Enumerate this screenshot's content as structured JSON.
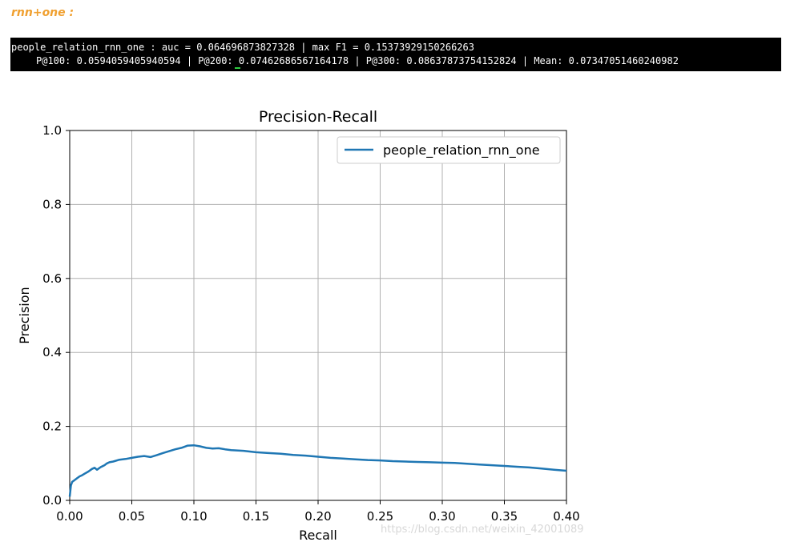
{
  "heading": "rnn+one :",
  "terminal": {
    "line1": "people_relation_rnn_one : auc = 0.064696873827328 | max F1 = 0.15373929150266263",
    "line2": "P@100: 0.0594059405940594 | P@200: 0.07462686567164178 | P@300: 0.08637873754152824 | Mean: 0.07347051460240982"
  },
  "watermark": "https://blog.csdn.net/weixin_42001089",
  "chart_data": {
    "type": "line",
    "title": "Precision-Recall",
    "xlabel": "Recall",
    "ylabel": "Precision",
    "xlim": [
      0.0,
      0.4
    ],
    "ylim": [
      0.0,
      1.0
    ],
    "xticks": [
      "0.00",
      "0.05",
      "0.10",
      "0.15",
      "0.20",
      "0.25",
      "0.30",
      "0.35",
      "0.40"
    ],
    "yticks": [
      "0.0",
      "0.2",
      "0.4",
      "0.6",
      "0.8",
      "1.0"
    ],
    "grid": true,
    "legend_position": "top-right",
    "color": "#1f77b4",
    "series": [
      {
        "name": "people_relation_rnn_one",
        "x": [
          0.0,
          0.001,
          0.002,
          0.004,
          0.006,
          0.008,
          0.01,
          0.012,
          0.015,
          0.018,
          0.02,
          0.022,
          0.025,
          0.028,
          0.03,
          0.032,
          0.035,
          0.04,
          0.045,
          0.05,
          0.055,
          0.06,
          0.065,
          0.07,
          0.075,
          0.08,
          0.085,
          0.09,
          0.095,
          0.1,
          0.105,
          0.11,
          0.115,
          0.12,
          0.125,
          0.13,
          0.14,
          0.15,
          0.16,
          0.17,
          0.18,
          0.19,
          0.2,
          0.21,
          0.22,
          0.23,
          0.24,
          0.25,
          0.26,
          0.27,
          0.28,
          0.29,
          0.3,
          0.31,
          0.32,
          0.33,
          0.34,
          0.35,
          0.36,
          0.37,
          0.38,
          0.39,
          0.4
        ],
        "y": [
          0.01,
          0.04,
          0.05,
          0.055,
          0.06,
          0.065,
          0.068,
          0.072,
          0.078,
          0.085,
          0.088,
          0.083,
          0.09,
          0.095,
          0.1,
          0.103,
          0.105,
          0.11,
          0.112,
          0.115,
          0.118,
          0.12,
          0.117,
          0.122,
          0.128,
          0.133,
          0.138,
          0.142,
          0.148,
          0.149,
          0.146,
          0.142,
          0.14,
          0.141,
          0.138,
          0.136,
          0.134,
          0.13,
          0.128,
          0.126,
          0.123,
          0.121,
          0.118,
          0.115,
          0.113,
          0.111,
          0.109,
          0.108,
          0.106,
          0.105,
          0.104,
          0.103,
          0.102,
          0.101,
          0.099,
          0.097,
          0.095,
          0.093,
          0.091,
          0.089,
          0.086,
          0.083,
          0.08
        ]
      }
    ]
  }
}
